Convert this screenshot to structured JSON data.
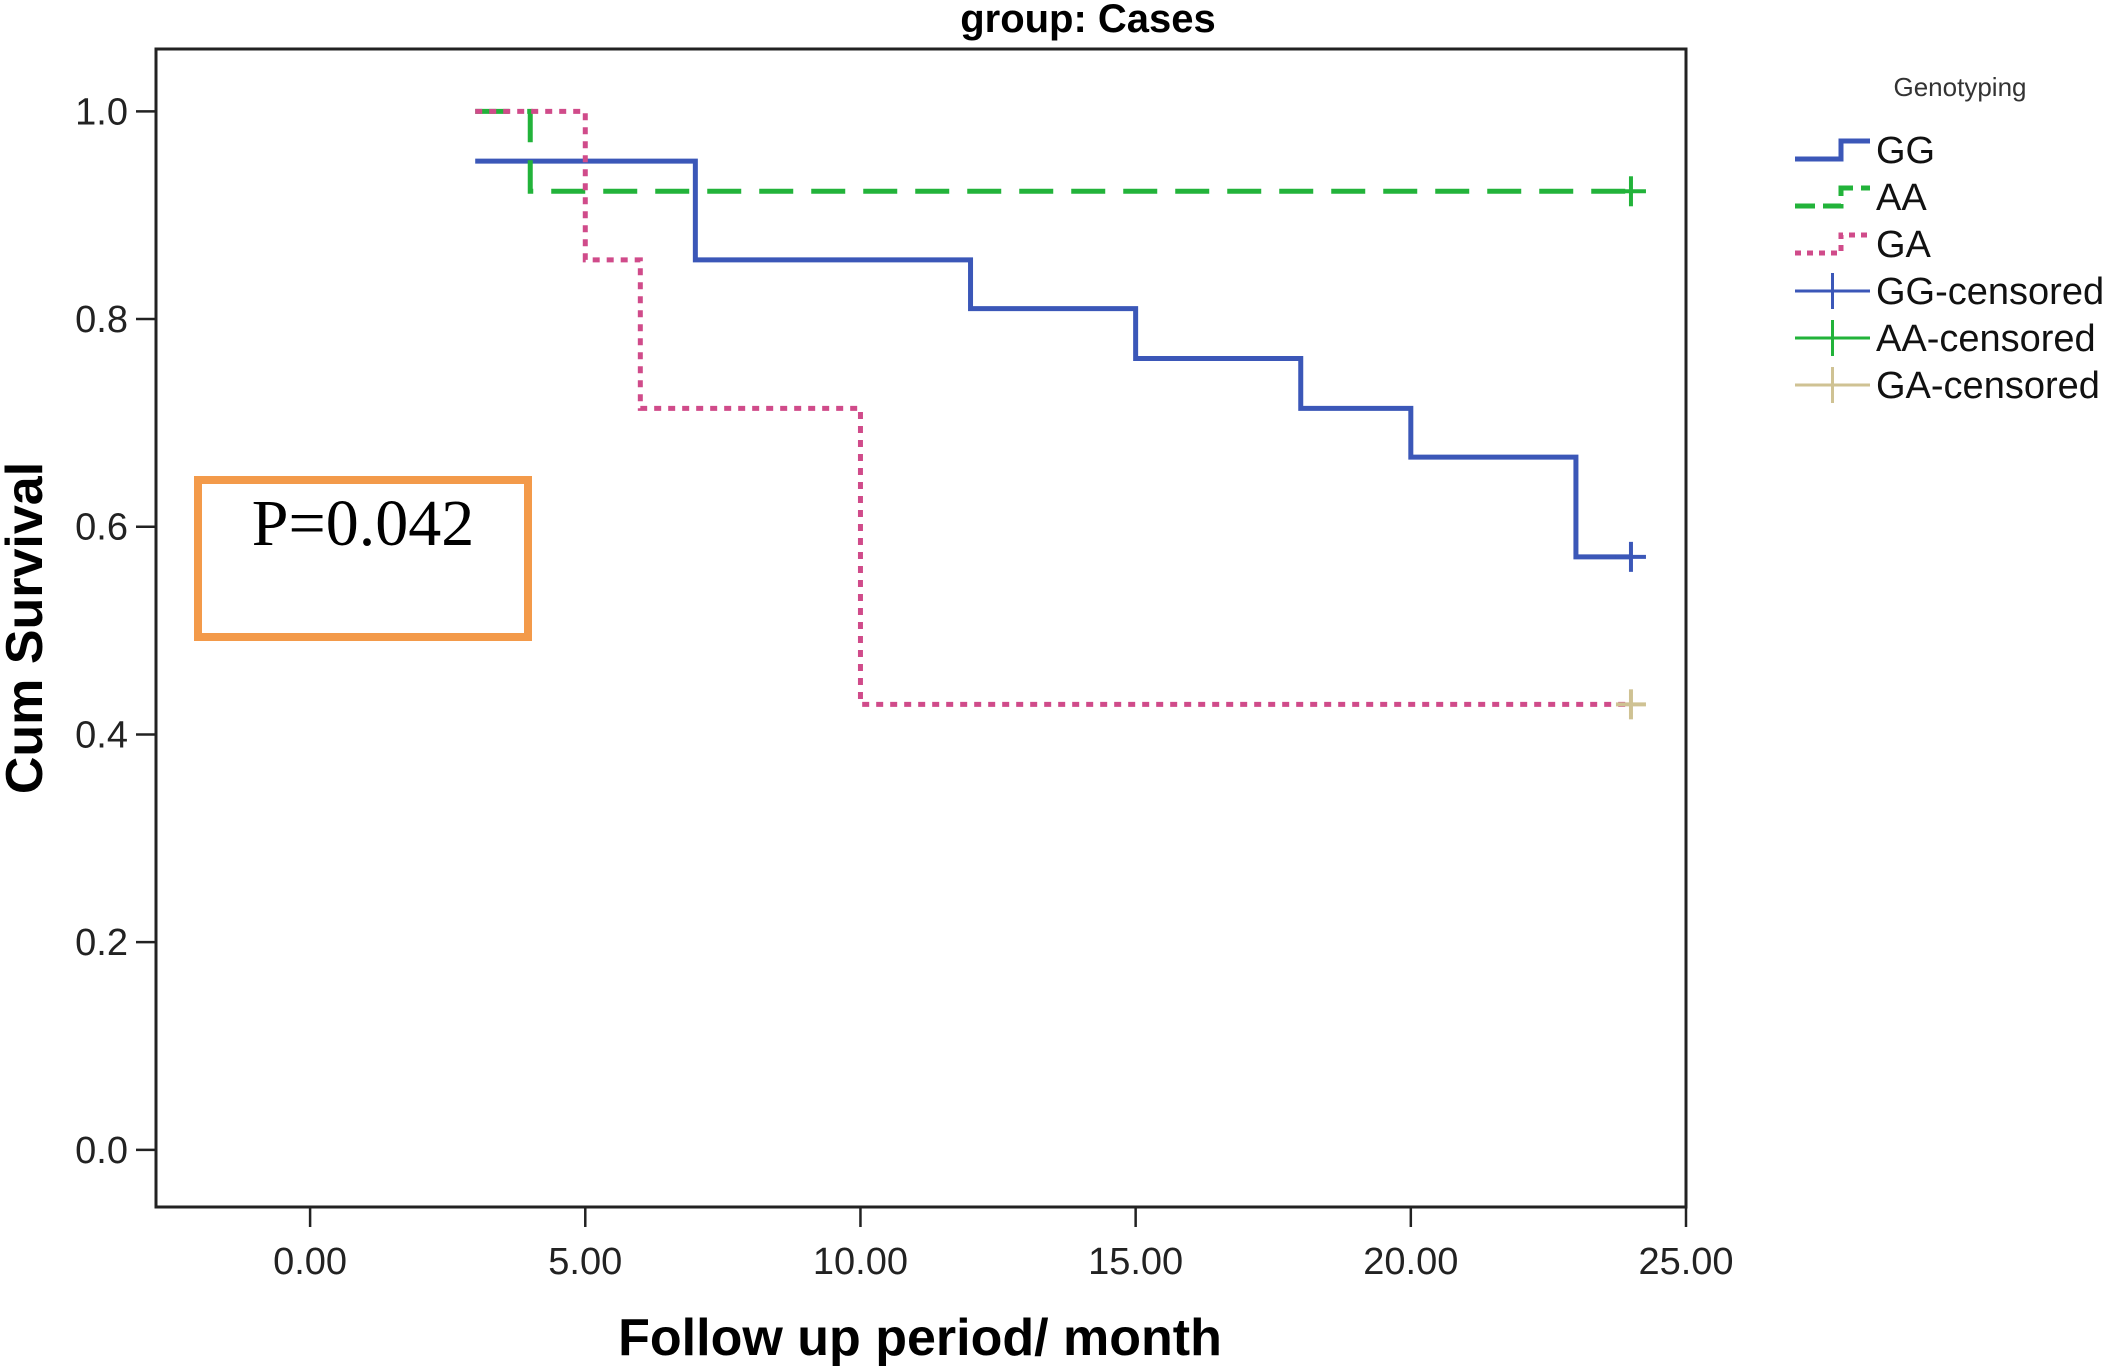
{
  "chart_data": {
    "type": "line",
    "title": "group: Cases",
    "xlabel": "Follow up period/ month",
    "ylabel": "Cum Survival",
    "xlim": [
      -2.8,
      25.0
    ],
    "ylim": [
      -0.055,
      1.06
    ],
    "xticks": [
      0,
      5,
      10,
      15,
      20,
      25
    ],
    "xtick_labels": [
      "0.00",
      "5.00",
      "10.00",
      "15.00",
      "20.00",
      "25.00"
    ],
    "yticks": [
      0.0,
      0.2,
      0.4,
      0.6,
      0.8,
      1.0
    ],
    "ytick_labels": [
      "0.0",
      "0.2",
      "0.4",
      "0.6",
      "0.8",
      "1.0"
    ],
    "grid": false,
    "legend": {
      "title": "Genotyping",
      "placement": "right-outside-top",
      "entries": [
        {
          "label": "GG",
          "kind": "step",
          "color": "#3b57b8",
          "dash": "solid"
        },
        {
          "label": "AA",
          "kind": "step",
          "color": "#22b33a",
          "dash": "dashed"
        },
        {
          "label": "GA",
          "kind": "step",
          "color": "#d04b8a",
          "dash": "dotted"
        },
        {
          "label": "GG-censored",
          "kind": "cross",
          "color": "#3b57b8"
        },
        {
          "label": "AA-censored",
          "kind": "cross",
          "color": "#22b33a"
        },
        {
          "label": "GA-censored",
          "kind": "cross",
          "color": "#cfc293"
        }
      ]
    },
    "series": [
      {
        "name": "GG",
        "color": "#3b57b8",
        "dash": "solid",
        "steps": [
          [
            3,
            0.952
          ],
          [
            7,
            0.857
          ],
          [
            12,
            0.81
          ],
          [
            15,
            0.762
          ],
          [
            18,
            0.714
          ],
          [
            20,
            0.667
          ],
          [
            23,
            0.571
          ],
          [
            24,
            0.571
          ]
        ],
        "censored": [
          [
            24,
            0.571
          ]
        ],
        "censor_color": "#3b57b8"
      },
      {
        "name": "AA",
        "color": "#22b33a",
        "dash": "dashed",
        "steps": [
          [
            3,
            1.0
          ],
          [
            4,
            0.923
          ],
          [
            24,
            0.923
          ]
        ],
        "censored": [
          [
            24,
            0.923
          ]
        ],
        "censor_color": "#22b33a"
      },
      {
        "name": "GA",
        "color": "#d04b8a",
        "dash": "dotted",
        "steps": [
          [
            3,
            1.0
          ],
          [
            5,
            0.857
          ],
          [
            6,
            0.714
          ],
          [
            10,
            0.429
          ],
          [
            24,
            0.429
          ]
        ],
        "censored": [
          [
            24,
            0.429
          ]
        ],
        "censor_color": "#cfc293"
      }
    ],
    "annotations": [
      {
        "text": "P=0.042",
        "box_color": "#f39a4a"
      }
    ]
  }
}
